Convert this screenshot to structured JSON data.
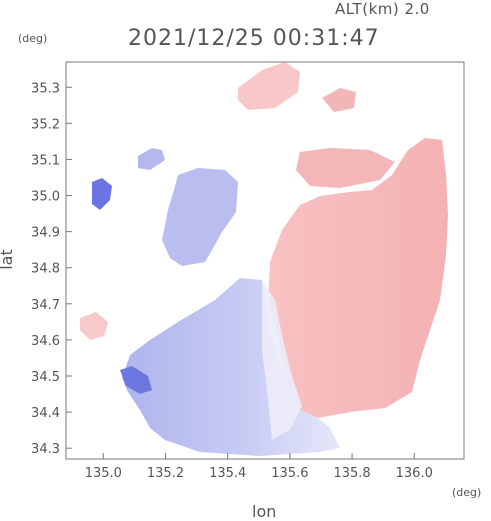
{
  "header": {
    "altitude_label": "ALT(km) 2.0",
    "timestamp": "2021/12/25 00:31:47"
  },
  "axes": {
    "x_unit": "(deg)",
    "y_unit": "(deg)",
    "x_label": "lon",
    "y_label": "lat",
    "x_ticks": [
      "135.0",
      "135.2",
      "135.4",
      "135.6",
      "135.8",
      "136.0"
    ],
    "y_ticks": [
      "35.3",
      "35.2",
      "35.1",
      "35.0",
      "34.9",
      "34.8",
      "34.7",
      "34.6",
      "34.5",
      "34.4",
      "34.3"
    ]
  },
  "map": {
    "lon_range": [
      134.88,
      136.16
    ],
    "lat_range": [
      34.27,
      35.37
    ],
    "colors": {
      "approaching": "#b8bcf0",
      "approaching_strong": "#5b66e0",
      "receding": "#f6b7b9",
      "receding_strong": "#e06b6e",
      "near_zero": "#eeeefa"
    }
  }
}
